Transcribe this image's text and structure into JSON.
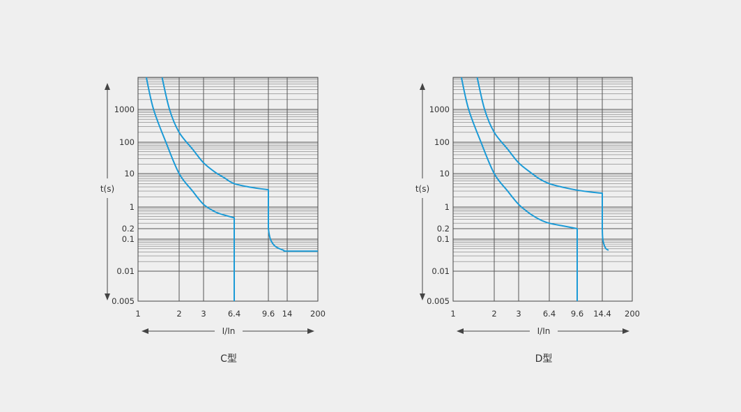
{
  "colors": {
    "background": "#efefef",
    "curve": "#1b9ad6",
    "grid": "#555555",
    "frame": "#444444",
    "axis_arrow": "#444444",
    "text": "#333333"
  },
  "chart_data": [
    {
      "type": "line",
      "title": "C型",
      "xlabel": "I/In",
      "ylabel": "t(s)",
      "x_tick_labels": [
        "1",
        "2",
        "3",
        "6.4",
        "9.6",
        "14",
        "200"
      ],
      "y_tick_labels": [
        "1000",
        "100",
        "10",
        "1",
        "0.2",
        "0.1",
        "0.01",
        "0.005"
      ],
      "grid": true,
      "series": [
        {
          "points": [
            [
              1.15,
              10000
            ],
            [
              1.3,
              1000
            ],
            [
              1.6,
              100
            ],
            [
              2.0,
              10
            ],
            [
              2.5,
              3
            ],
            [
              3.0,
              1.2
            ],
            [
              4.0,
              0.7
            ],
            [
              5.0,
              0.55
            ],
            [
              6.4,
              0.45
            ],
            [
              6.4,
              0.005
            ]
          ]
        },
        {
          "points": [
            [
              1.5,
              10000
            ],
            [
              1.7,
              1000
            ],
            [
              2.0,
              200
            ],
            [
              2.5,
              60
            ],
            [
              3.0,
              22
            ],
            [
              4.0,
              11
            ],
            [
              5.0,
              7.5
            ],
            [
              6.4,
              5
            ],
            [
              8.0,
              3.8
            ],
            [
              9.6,
              3.3
            ],
            [
              9.6,
              0.2
            ],
            [
              10.0,
              0.1
            ],
            [
              11.0,
              0.06
            ],
            [
              13.0,
              0.045
            ],
            [
              14.0,
              0.042
            ],
            [
              200,
              0.042
            ]
          ]
        }
      ]
    },
    {
      "type": "line",
      "title": "D型",
      "xlabel": "I/In",
      "ylabel": "t(s)",
      "x_tick_labels": [
        "1",
        "2",
        "3",
        "6.4",
        "9.6",
        "14.4",
        "200"
      ],
      "y_tick_labels": [
        "1000",
        "100",
        "10",
        "1",
        "0.2",
        "0.1",
        "0.01",
        "0.005"
      ],
      "grid": true,
      "series": [
        {
          "points": [
            [
              1.15,
              10000
            ],
            [
              1.3,
              1000
            ],
            [
              1.6,
              100
            ],
            [
              2.0,
              10
            ],
            [
              2.5,
              3
            ],
            [
              3.0,
              1.2
            ],
            [
              4.0,
              0.6
            ],
            [
              5.0,
              0.4
            ],
            [
              6.4,
              0.3
            ],
            [
              8.0,
              0.24
            ],
            [
              9.6,
              0.2
            ],
            [
              9.6,
              0.005
            ]
          ]
        },
        {
          "points": [
            [
              1.5,
              10000
            ],
            [
              1.7,
              1000
            ],
            [
              2.0,
              200
            ],
            [
              2.5,
              60
            ],
            [
              3.0,
              22
            ],
            [
              4.0,
              11
            ],
            [
              5.0,
              7
            ],
            [
              6.4,
              5
            ],
            [
              8.0,
              3.8
            ],
            [
              9.6,
              3.2
            ],
            [
              12.0,
              2.8
            ],
            [
              14.4,
              2.6
            ],
            [
              14.4,
              0.2
            ],
            [
              15.0,
              0.1
            ],
            [
              17.0,
              0.065
            ],
            [
              20.0,
              0.05
            ],
            [
              25.0,
              0.045
            ]
          ]
        }
      ]
    }
  ]
}
